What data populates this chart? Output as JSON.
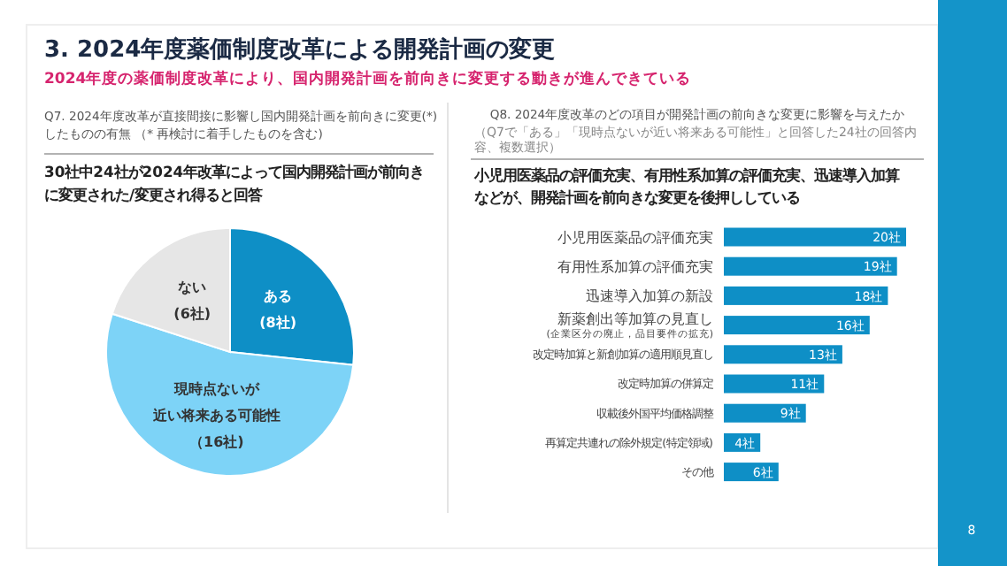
{
  "chart_data": [
    {
      "type": "pie",
      "title": "Q7. 2024年度改革が直接間接に影響し国内開発計画を前向きに変更(*)したものの有無 （* 再検討に着手したものを含む)",
      "subtitle": "30社中24社が2024年改革によって国内開発計画が前向きに変更された/変更され得ると回答",
      "annotations": [
        "3. 2024年度薬価制度改革による開発計画の変更",
        "2024年度の薬価制度改革により、国内開発計画を前向きに変更する動きが進んできている",
        "8"
      ],
      "categories": [
        "ある",
        "現時点ないが近い将来ある可能性",
        "ない"
      ],
      "values": [
        8,
        16,
        6
      ],
      "value_labels": [
        "(8社)",
        "（16社)",
        "(6社)"
      ],
      "colors": [
        "#0e8fc6",
        "#7dd3f7",
        "#e6e6e6"
      ]
    },
    {
      "type": "bar",
      "orientation": "horizontal",
      "title": "Q8. 2024年度改革のどの項目が開発計画の前向きな変更に影響を与えたか",
      "subtitle": "小児用医薬品の評価充実、有用性系加算の評価充実、迅速導入加算などが、開発計画を前向きな変更を後押ししている",
      "annotations": [
        "（Q7で「ある」「現時点ないが近い将来ある可能性」と回答した24社の回答内容、複数選択）"
      ],
      "categories": [
        "小児用医薬品の評価充実",
        "有用性系加算の評価充実",
        "迅速導入加算の新設",
        "新薬創出等加算の見直し\n(企業区分の廃止，品目要件の拡充)",
        "改定時加算と新創加算の適用順見直し",
        "改定時加算の併算定",
        "収載後外国平均価格調整",
        "再算定共連れの除外規定(特定領域)",
        "その他"
      ],
      "values": [
        20,
        19,
        18,
        16,
        13,
        11,
        9,
        4,
        6
      ],
      "value_labels": [
        "20社",
        "19社",
        "18社",
        "16社",
        "13社",
        "11社",
        "9社",
        "4社",
        "6社"
      ],
      "color": "#0e8fc6"
    }
  ]
}
